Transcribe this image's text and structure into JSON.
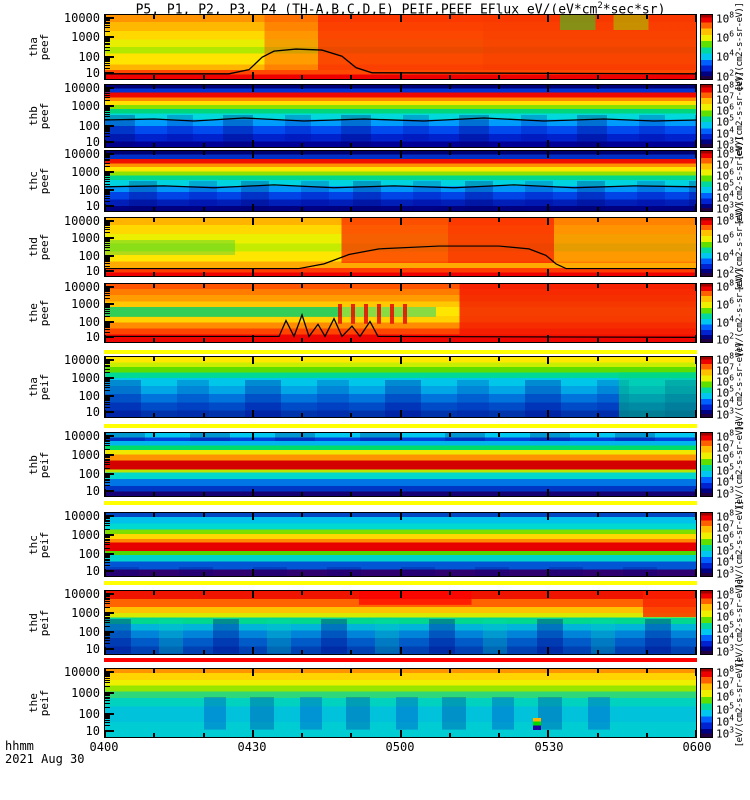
{
  "title": {
    "pre": "P5, P1, P2, P3, P4 (TH-A,B,C,D,E)  PEIF,PEEF  EFlux  eV/(eV*cm",
    "sup": "2",
    "post": "*sec*sr)"
  },
  "x_axis": {
    "label": "hhmm",
    "date": "2021 Aug 30",
    "ticks": [
      "0400",
      "0430",
      "0500",
      "0530",
      "0600"
    ]
  },
  "colors": {
    "separator_yellow": "#ffff00",
    "separator_red": "#ff0000",
    "frame": "#000000",
    "background": "#ffffff"
  },
  "chart_data": {
    "type": "heatmap",
    "title": "P5, P1, P2, P3, P4 (TH-A,B,C,D,E) PEIF,PEEF EFlux eV/(eV*cm2*sec*sr)",
    "x_range": [
      "0400",
      "0600"
    ],
    "x_tick_interval_min": 30,
    "y_scale": "log",
    "energy_range_ev": [
      5,
      25000
    ],
    "legend_position": "right-colorbars",
    "grid": false,
    "panels": [
      {
        "id": "tha-peef",
        "ylabel": [
          "tha",
          "peef"
        ],
        "yticks": [
          "10000",
          "1000",
          "100",
          "10"
        ],
        "colorbar_ticks": [
          "10^8",
          "10^6",
          "10^4",
          "10^2"
        ],
        "colorbar_unit": "[eV/(cm2-s-sr-eV)]",
        "description": "Electron flux: yellow-orange 10^5-10^6 before 0440, intense red 10^7-10^8 at all energies 0440-0600, green patches near 0545 at high energy, thin red band at lowest energies, black spacecraft-potential trace bump near 0435-0450."
      },
      {
        "id": "thb-peef",
        "ylabel": [
          "thb",
          "peef"
        ],
        "yticks": [
          "10000",
          "1000",
          "100",
          "10"
        ],
        "colorbar_ticks": [
          "10^8",
          "10^7",
          "10^6",
          "10^5",
          "10^4",
          "10^3"
        ],
        "colorbar_unit": "[eV/(cm2-s-sr-eV)]",
        "description": "Steady banded spectrum: dark blue above 10 keV, red band near 2-5 keV, orange-yellow-green 300-1000 eV, cyan ~100 eV, blue below 50 eV; black trace near 100 eV."
      },
      {
        "id": "thc-peef",
        "ylabel": [
          "thc",
          "peef"
        ],
        "yticks": [
          "10000",
          "1000",
          "100",
          "10"
        ],
        "colorbar_ticks": [
          "10^8",
          "10^7",
          "10^6",
          "10^5",
          "10^4",
          "10^3"
        ],
        "colorbar_unit": "[eV/(cm2-s-sr-eV)]",
        "description": "Same banded structure as thb peef: dark blue top, red band 2-5 keV, yellow-green mid energies, cyan-blue low energies; black trace near 100 eV."
      },
      {
        "id": "thd-peef",
        "ylabel": [
          "thd",
          "peef"
        ],
        "yticks": [
          "10000",
          "1000",
          "100",
          "10"
        ],
        "colorbar_ticks": [
          "10^8",
          "10^6",
          "10^4",
          "10^2"
        ],
        "colorbar_unit": "[eV/(cm2-s-sr-eV)]",
        "description": "Yellow-green flux before 0445 becoming intense red 0450-0545, orange after; thin red band at lowest energies; black trace elevated 0445-0545."
      },
      {
        "id": "the-peef",
        "ylabel": [
          "the",
          "peef"
        ],
        "yticks": [
          "10000",
          "1000",
          "100",
          "10"
        ],
        "colorbar_ticks": [
          "10^8",
          "10^6",
          "10^4",
          "10^2"
        ],
        "colorbar_unit": "[eV/(cm2-s-sr-eV)]",
        "description": "Very high flux: red-orange at high energies throughout; green-teal band 50-300 eV until ~0500 interrupted by red vertical spikes 0445-0500; nearly all red after 0500; bright red lowest energies."
      },
      {
        "id": "tha-peif",
        "ylabel": [
          "tha",
          "peif"
        ],
        "yticks": [
          "10000",
          "1000",
          "100",
          "10"
        ],
        "colorbar_ticks": [
          "10^8",
          "10^7",
          "10^6",
          "10^5",
          "10^4",
          "10^3"
        ],
        "colorbar_unit": "[eV/(cm2-s-sr-eV)]",
        "description": "Ion flux: yellow band at ~10 keV, green 2-5 keV, mottled cyan-blue below 1 keV with dark blue patches; greener after 0550."
      },
      {
        "id": "thb-peif",
        "ylabel": [
          "thb",
          "peif"
        ],
        "yticks": [
          "10000",
          "1000",
          "100",
          "10"
        ],
        "colorbar_ticks": [
          "10^8",
          "10^7",
          "10^6",
          "10^5",
          "10^4",
          "10^3"
        ],
        "colorbar_unit": "[eV/(cm2-s-sr-eV)]",
        "description": "Steady bands: cyan top, blue row ~15 keV, green/yellow/orange 2-8 keV, dark red band near 1 keV, cyan-blue-dark below 300 eV."
      },
      {
        "id": "thc-peif",
        "ylabel": [
          "thc",
          "peif"
        ],
        "yticks": [
          "10000",
          "1000",
          "100",
          "10"
        ],
        "colorbar_ticks": [
          "10^8",
          "10^7",
          "10^6",
          "10^5",
          "10^4",
          "10^3"
        ],
        "colorbar_unit": "[eV/(cm2-s-sr-eV)]",
        "description": "Steady bands: blue/dark patches top, cyan ~10 keV, green-yellow-orange 2-6 keV, red band near 1 keV, green-cyan-blue below, dark purple lowest energies."
      },
      {
        "id": "thd-peif",
        "ylabel": [
          "thd",
          "peif"
        ],
        "yticks": [
          "10000",
          "1000",
          "100",
          "10"
        ],
        "colorbar_ticks": [
          "10^8",
          "10^7",
          "10^6",
          "10^5",
          "10^4",
          "10^3"
        ],
        "colorbar_unit": "[eV/(cm2-s-sr-eV)]",
        "description": "Red-orange at high energies with brighter red blob 0500-0515 and after 0550; yellow 2-4 keV; mottled green-cyan-blue below 1 keV."
      },
      {
        "id": "the-peif",
        "ylabel": [
          "the",
          "peif"
        ],
        "yticks": [
          "10000",
          "1000",
          "100",
          "10"
        ],
        "colorbar_ticks": [
          "10^8",
          "10^7",
          "10^6",
          "10^5",
          "10^4",
          "10^3"
        ],
        "colorbar_unit": "[eV/(cm2-s-sr-eV)]",
        "description": "Orange row at top energies, yellow-green 2-10 keV, teal-cyan below 1 keV with blue mottled patches 0430-0545 and small multicolor specks near 0520."
      }
    ],
    "separators": [
      {
        "after_panel": "the-peef",
        "color": "#ffff00"
      },
      {
        "after_panel": "tha-peif",
        "color": "#ffff00"
      },
      {
        "after_panel": "thb-peif",
        "color": "#ffff00"
      },
      {
        "after_panel": "thc-peif",
        "color": "#ffff00"
      },
      {
        "after_panel": "thd-peif",
        "color": "#ff0000"
      }
    ]
  }
}
